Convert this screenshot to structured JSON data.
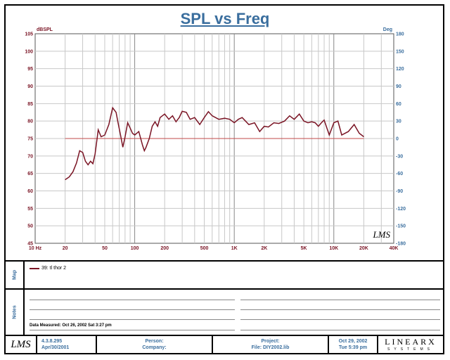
{
  "title": "SPL vs Freq",
  "chart_data": {
    "type": "line",
    "title": "SPL vs Freq",
    "ylabel_left": "dBSPL",
    "ylabel_right": "Deg",
    "xscale": "log",
    "xlim": [
      10,
      40000
    ],
    "ylim": [
      45,
      105
    ],
    "ylim_right": [
      -180,
      180
    ],
    "grid": true,
    "x_ticks": [
      "10 Hz",
      "20",
      "50",
      "100",
      "200",
      "500",
      "1K",
      "2K",
      "5K",
      "10K",
      "20K",
      "40K"
    ],
    "y_ticks": [
      "105",
      "100",
      "95",
      "90",
      "85",
      "80",
      "75",
      "70",
      "65",
      "60",
      "55",
      "50",
      "45"
    ],
    "y_ticks_right": [
      "180",
      "150",
      "120",
      "90",
      "60",
      "30",
      "0",
      "-30",
      "-60",
      "-90",
      "-120",
      "-150",
      "-180"
    ],
    "reference_line": {
      "value": 75,
      "color": "#c04a4a"
    },
    "series": [
      {
        "name": "39: tl thor 2",
        "color": "#7a1424",
        "x": [
          20,
          22,
          24,
          26,
          28,
          30,
          32,
          34,
          36,
          38,
          40,
          43,
          46,
          50,
          55,
          60,
          65,
          68,
          72,
          76,
          80,
          85,
          90,
          95,
          100,
          110,
          120,
          125,
          130,
          140,
          150,
          160,
          170,
          180,
          200,
          220,
          240,
          260,
          280,
          300,
          330,
          360,
          400,
          450,
          500,
          550,
          600,
          700,
          800,
          900,
          1000,
          1100,
          1200,
          1400,
          1600,
          1800,
          2000,
          2200,
          2500,
          2800,
          3200,
          3600,
          4000,
          4500,
          5000,
          5500,
          6000,
          6500,
          7000,
          7500,
          8000,
          9000,
          10000,
          11000,
          12000,
          14000,
          16000,
          18000,
          20000
        ],
        "values": [
          63.2,
          64,
          65.5,
          68,
          71.5,
          71,
          68.5,
          67.5,
          68.5,
          67.8,
          70.5,
          77.5,
          75.5,
          76,
          79,
          83.8,
          82.5,
          79.5,
          76,
          72.5,
          75.5,
          79.5,
          78,
          76.5,
          76,
          77,
          73,
          71.5,
          72.5,
          75,
          78.5,
          79.8,
          78.5,
          81,
          82,
          80.5,
          81.5,
          79.8,
          81,
          82.8,
          82.5,
          80.5,
          81,
          79,
          81,
          82.7,
          81.5,
          80.5,
          80.8,
          80.5,
          79.5,
          80.5,
          81,
          79,
          79.5,
          77,
          78.5,
          78.3,
          79.5,
          79.3,
          80,
          81.5,
          80.5,
          82,
          80,
          79.5,
          79.8,
          79.5,
          78.5,
          79.5,
          80.3,
          76,
          79.5,
          80,
          76,
          77,
          79,
          76.5,
          75.5
        ]
      }
    ]
  },
  "map": {
    "label": "Map",
    "entry": "39: tl thor 2"
  },
  "notes": {
    "label": "Notes",
    "measured": "Data Measured: Oct 26, 2002  Sat  3:27 pm"
  },
  "footer": {
    "logo": "LMS",
    "version": "4.3.8.295",
    "version_date": "Apr/30/2001",
    "person": "Person:",
    "company": "Company:",
    "project": "Project:",
    "file": "File: DIY2002.lib",
    "date": "Oct 29, 2002",
    "time": "Tue  5:39 pm",
    "brand_top": "LINEARX",
    "brand_bottom": "SYSTEMS"
  },
  "watermark": "LMS"
}
